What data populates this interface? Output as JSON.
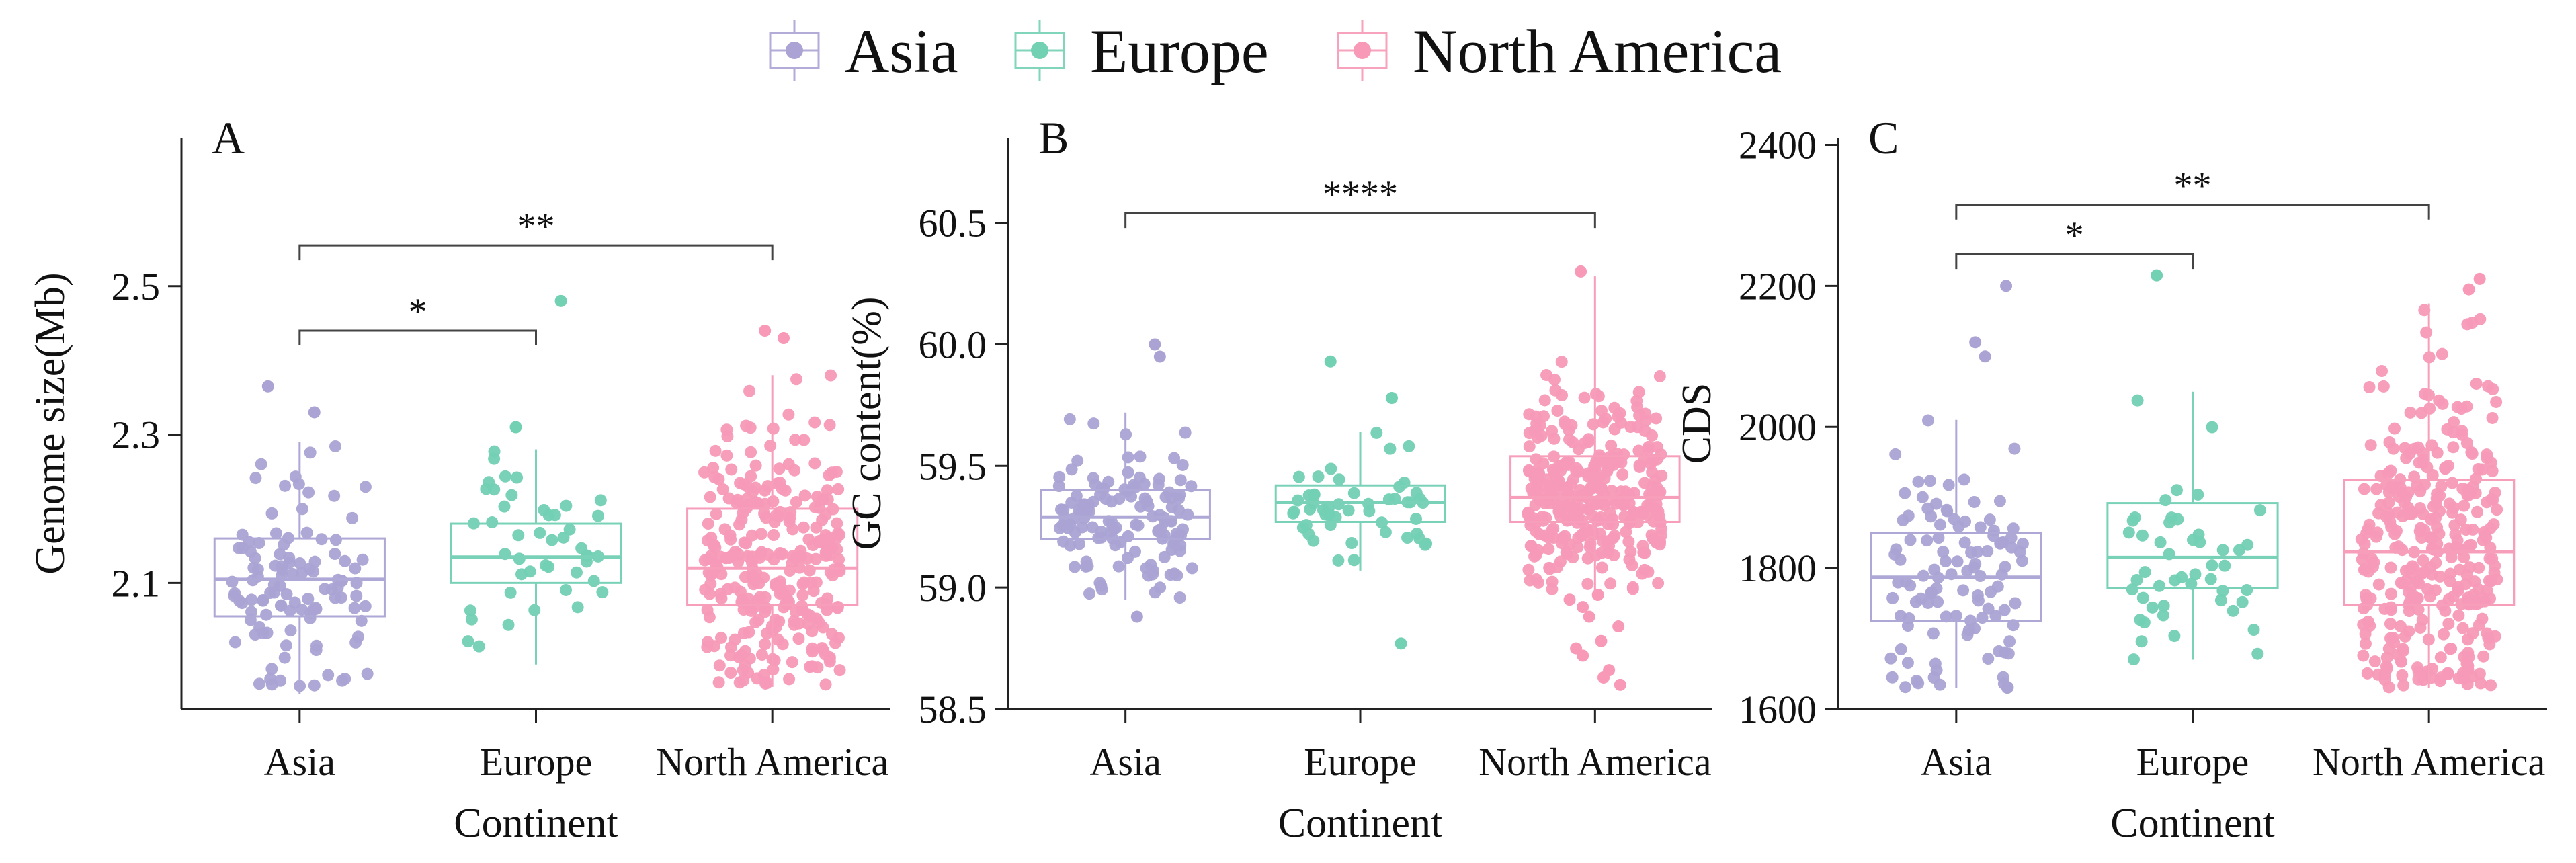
{
  "legend": {
    "items": [
      {
        "label": "Asia",
        "color": "#aaa3d4"
      },
      {
        "label": "Europe",
        "color": "#72d0b3"
      },
      {
        "label": "North America",
        "color": "#f799b7"
      }
    ]
  },
  "chart_data": [
    {
      "type": "box",
      "panel": "A",
      "xlabel": "Continent",
      "ylabel": "Genome size(Mb)",
      "categories": [
        "Asia",
        "Europe",
        "North America"
      ],
      "ylim": [
        1.93,
        2.7
      ],
      "yticks": [
        2.1,
        2.3,
        2.5
      ],
      "series": [
        {
          "name": "Asia",
          "color": "#aaa3d4",
          "n": 110,
          "min": 1.95,
          "q1": 2.055,
          "median": 2.105,
          "q3": 2.16,
          "max": 2.29,
          "outliers": [
            2.33,
            2.365
          ]
        },
        {
          "name": "Europe",
          "color": "#72d0b3",
          "n": 45,
          "min": 1.99,
          "q1": 2.1,
          "median": 2.135,
          "q3": 2.18,
          "max": 2.28,
          "outliers": [
            2.31,
            2.48
          ]
        },
        {
          "name": "North America",
          "color": "#f799b7",
          "n": 290,
          "min": 1.96,
          "q1": 2.07,
          "median": 2.12,
          "q3": 2.2,
          "max": 2.38,
          "outliers": [
            2.43,
            2.44
          ]
        }
      ],
      "significance": [
        {
          "groups": [
            "Asia",
            "Europe"
          ],
          "label": "*",
          "y": 2.44
        },
        {
          "groups": [
            "Asia",
            "North America"
          ],
          "label": "**",
          "y": 2.555
        }
      ]
    },
    {
      "type": "box",
      "panel": "B",
      "xlabel": "Continent",
      "ylabel": "GC content(%)",
      "categories": [
        "Asia",
        "Europe",
        "North America"
      ],
      "ylim": [
        58.5,
        60.85
      ],
      "yticks": [
        58.5,
        59.0,
        59.5,
        60.0,
        60.5
      ],
      "ytick_labels": [
        "58.5",
        "59.0",
        "59.5",
        "60.0",
        "60.5"
      ],
      "series": [
        {
          "name": "Asia",
          "color": "#aaa3d4",
          "n": 130,
          "min": 58.95,
          "q1": 59.2,
          "median": 59.29,
          "q3": 59.4,
          "max": 59.72,
          "outliers": [
            58.88,
            59.95,
            60.0
          ]
        },
        {
          "name": "Europe",
          "color": "#72d0b3",
          "n": 50,
          "min": 59.07,
          "q1": 59.27,
          "median": 59.35,
          "q3": 59.42,
          "max": 59.64,
          "outliers": [
            58.77,
            59.78,
            59.93
          ]
        },
        {
          "name": "North America",
          "color": "#f799b7",
          "n": 320,
          "min": 58.98,
          "q1": 59.27,
          "median": 59.37,
          "q3": 59.54,
          "max": 60.28,
          "outliers": [
            58.6,
            58.63,
            58.66,
            58.72,
            58.75,
            58.78,
            58.84,
            58.88,
            58.92,
            58.95,
            58.97,
            60.3
          ]
        },
        {
          "name": "_",
          "color": "#f799b7",
          "n": 0
        }
      ],
      "significance": [
        {
          "groups": [
            "Asia",
            "North America"
          ],
          "label": "****",
          "y": 60.54
        }
      ]
    },
    {
      "type": "box",
      "panel": "C",
      "xlabel": "Continent",
      "ylabel": "CDS",
      "categories": [
        "Asia",
        "Europe",
        "North America"
      ],
      "ylim": [
        1600,
        2410
      ],
      "yticks": [
        1600,
        1800,
        2000,
        2200,
        2400
      ],
      "series": [
        {
          "name": "Asia",
          "color": "#aaa3d4",
          "n": 110,
          "min": 1630,
          "q1": 1725,
          "median": 1787,
          "q3": 1850,
          "max": 2010,
          "outliers": [
            2100,
            2120,
            2200
          ]
        },
        {
          "name": "Europe",
          "color": "#72d0b3",
          "n": 48,
          "min": 1670,
          "q1": 1772,
          "median": 1815,
          "q3": 1892,
          "max": 2050,
          "outliers": [
            2215
          ]
        },
        {
          "name": "North America",
          "color": "#f799b7",
          "n": 330,
          "min": 1630,
          "q1": 1748,
          "median": 1823,
          "q3": 1925,
          "max": 2175,
          "outliers": [
            2195,
            2210
          ]
        }
      ],
      "significance": [
        {
          "groups": [
            "Asia",
            "Europe"
          ],
          "label": "*",
          "y": 2245
        },
        {
          "groups": [
            "Asia",
            "North America"
          ],
          "label": "**",
          "y": 2315
        }
      ]
    }
  ]
}
